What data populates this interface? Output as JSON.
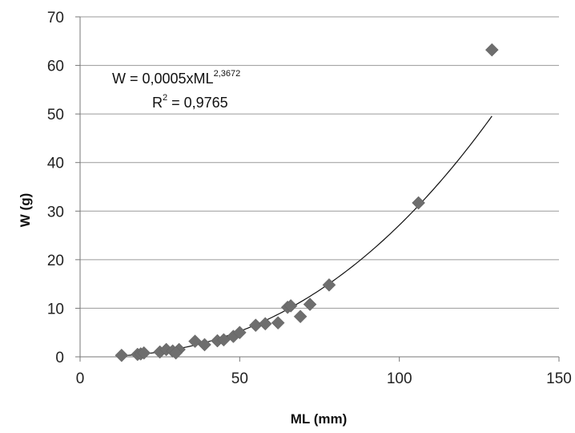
{
  "chart_data": {
    "type": "scatter",
    "title": "",
    "xlabel": "ML (mm)",
    "ylabel": "W (g)",
    "xlim": [
      0,
      150
    ],
    "ylim": [
      0,
      70
    ],
    "xticks": [
      0,
      50,
      100,
      150
    ],
    "yticks": [
      0,
      10,
      20,
      30,
      40,
      50,
      60,
      70
    ],
    "grid": "horizontal",
    "marker": "diamond",
    "colors": {
      "marker": "#6e6e6e",
      "trendline": "#111111",
      "grid": "#9a9a9a"
    },
    "series": [
      {
        "points": [
          [
            13,
            0.3
          ],
          [
            18,
            0.5
          ],
          [
            19,
            0.6
          ],
          [
            20,
            0.8
          ],
          [
            25,
            1.0
          ],
          [
            27,
            1.5
          ],
          [
            29,
            1.2
          ],
          [
            31,
            1.5
          ],
          [
            30,
            0.8
          ],
          [
            36,
            3.2
          ],
          [
            39,
            2.5
          ],
          [
            43,
            3.3
          ],
          [
            45,
            3.5
          ],
          [
            48,
            4.2
          ],
          [
            50,
            5.0
          ],
          [
            55,
            6.5
          ],
          [
            58,
            6.8
          ],
          [
            62,
            7.0
          ],
          [
            65,
            10.2
          ],
          [
            66,
            10.5
          ],
          [
            69,
            8.3
          ],
          [
            72,
            10.8
          ],
          [
            78,
            14.8
          ],
          [
            106,
            31.7
          ],
          [
            129,
            63.2
          ]
        ]
      }
    ],
    "trendline": {
      "type": "power",
      "coefficient": 0.0005,
      "exponent": 2.3672,
      "x_range": [
        13,
        129
      ],
      "equation_main": "W = 0,0005xML",
      "equation_exponent": "2,3672",
      "r2_prefix": "R",
      "r2_sup": "2",
      "r2_value": " = 0,9765"
    }
  }
}
